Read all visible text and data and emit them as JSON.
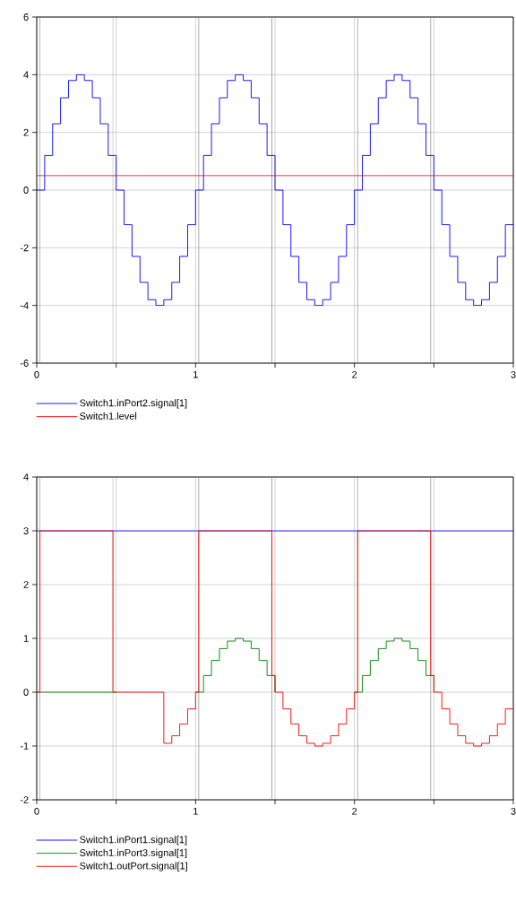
{
  "chart_data": [
    {
      "type": "step",
      "xlim": [
        0,
        3
      ],
      "ylim": [
        -6,
        6
      ],
      "xticks": [
        0,
        {
          "value": 0.5,
          "label": null
        },
        1,
        {
          "value": 1.5,
          "label": null
        },
        2,
        {
          "value": 2.5,
          "label": null
        },
        3
      ],
      "yticks": [
        -6,
        -4,
        -2,
        0,
        2,
        4,
        6
      ],
      "grid": true,
      "legend": "bottom",
      "x": [
        0,
        0.05,
        0.1,
        0.15,
        0.2,
        0.25,
        0.3,
        0.35,
        0.4,
        0.45,
        0.5,
        0.55,
        0.6,
        0.65,
        0.7,
        0.75,
        0.8,
        0.85,
        0.9,
        0.95,
        1,
        1.05,
        1.1,
        1.15,
        1.2,
        1.25,
        1.3,
        1.35,
        1.4,
        1.45,
        1.5,
        1.55,
        1.6,
        1.65,
        1.7,
        1.75,
        1.8,
        1.85,
        1.9,
        1.95,
        2,
        2.05,
        2.1,
        2.15,
        2.2,
        2.25,
        2.3,
        2.35,
        2.4,
        2.45,
        2.5,
        2.55,
        2.6,
        2.65,
        2.7,
        2.75,
        2.8,
        2.85,
        2.9,
        2.95,
        3
      ],
      "series": [
        {
          "name": "Switch1.inPort2.signal[1]",
          "color": "#0000ff",
          "values": [
            0,
            1.2,
            2.3,
            3.2,
            3.8,
            4,
            3.8,
            3.2,
            2.3,
            1.2,
            0,
            -1.2,
            -2.3,
            -3.2,
            -3.8,
            -4,
            -3.8,
            -3.2,
            -2.3,
            -1.2,
            0,
            1.2,
            2.3,
            3.2,
            3.8,
            4,
            3.8,
            3.2,
            2.3,
            1.2,
            0,
            -1.2,
            -2.3,
            -3.2,
            -3.8,
            -4,
            -3.8,
            -3.2,
            -2.3,
            -1.2,
            0,
            1.2,
            2.3,
            3.2,
            3.8,
            4,
            3.8,
            3.2,
            2.3,
            1.2,
            0,
            -1.2,
            -2.3,
            -3.2,
            -3.8,
            -4,
            -3.8,
            -3.2,
            -2.3,
            -1.2,
            -1.2
          ]
        },
        {
          "name": "Switch1.level",
          "color": "#ff0000",
          "type": "line",
          "x": [
            0,
            3
          ],
          "values": [
            0.5,
            0.5
          ]
        }
      ],
      "ref_lines": [
        {
          "axis": "x",
          "value": 0.02,
          "color": "#808080"
        },
        {
          "axis": "x",
          "value": 0.48,
          "color": "#808080"
        },
        {
          "axis": "x",
          "value": 1.02,
          "color": "#808080"
        },
        {
          "axis": "x",
          "value": 1.48,
          "color": "#808080"
        },
        {
          "axis": "x",
          "value": 2.02,
          "color": "#808080"
        },
        {
          "axis": "x",
          "value": 2.48,
          "color": "#808080"
        }
      ]
    },
    {
      "type": "step",
      "xlim": [
        0,
        3
      ],
      "ylim": [
        -2,
        4
      ],
      "xticks": [
        0,
        {
          "value": 0.5,
          "label": null
        },
        1,
        {
          "value": 1.5,
          "label": null
        },
        2,
        {
          "value": 2.5,
          "label": null
        },
        3
      ],
      "yticks": [
        -2,
        -1,
        0,
        1,
        2,
        3,
        4
      ],
      "grid": true,
      "legend": "bottom",
      "x": [
        0,
        0.05,
        0.1,
        0.15,
        0.2,
        0.25,
        0.3,
        0.35,
        0.4,
        0.45,
        0.5,
        0.55,
        0.6,
        0.65,
        0.7,
        0.75,
        0.8,
        0.85,
        0.9,
        0.95,
        1,
        1.05,
        1.1,
        1.15,
        1.2,
        1.25,
        1.3,
        1.35,
        1.4,
        1.45,
        1.5,
        1.55,
        1.6,
        1.65,
        1.7,
        1.75,
        1.8,
        1.85,
        1.9,
        1.95,
        2,
        2.05,
        2.1,
        2.15,
        2.2,
        2.25,
        2.3,
        2.35,
        2.4,
        2.45,
        2.5
      ],
      "series": [
        {
          "name": "Switch1.inPort1.signal[1]",
          "color": "#0000ff",
          "type": "line",
          "x": [
            0,
            3
          ],
          "values": [
            3,
            3
          ]
        },
        {
          "name": "Switch1.inPort3.signal[1]",
          "color": "#008000",
          "values": [
            0,
            0,
            0,
            0,
            0,
            0,
            0,
            0,
            0,
            0,
            0,
            null,
            null,
            null,
            null,
            null,
            null,
            null,
            null,
            null,
            0,
            0.31,
            0.59,
            0.81,
            0.95,
            1,
            0.95,
            0.81,
            0.59,
            0.31,
            0,
            null,
            null,
            null,
            null,
            null,
            null,
            null,
            null,
            null,
            0,
            0.31,
            0.59,
            0.81,
            0.95,
            1,
            0.95,
            0.81,
            0.59,
            0.31,
            0
          ]
        },
        {
          "name": "Switch1.outPort.signal[1]",
          "color": "#ff0000",
          "x": [
            0,
            0.02,
            0.48,
            0.8,
            0.85,
            0.9,
            0.95,
            1,
            1.02,
            1.48,
            1.5,
            1.55,
            1.6,
            1.65,
            1.7,
            1.75,
            1.8,
            1.85,
            1.9,
            1.95,
            2,
            2.02,
            2.48,
            2.5,
            2.55,
            2.6,
            2.65,
            2.7,
            2.75,
            2.8,
            2.85,
            2.9,
            2.95,
            3
          ],
          "values": [
            0,
            3,
            0,
            -0.95,
            -0.81,
            -0.59,
            -0.31,
            0,
            3,
            0.31,
            0,
            -0.31,
            -0.59,
            -0.81,
            -0.95,
            -1,
            -0.95,
            -0.81,
            -0.59,
            -0.31,
            0,
            3,
            0.31,
            0,
            -0.31,
            -0.59,
            -0.81,
            -0.95,
            -1,
            -0.95,
            -0.81,
            -0.59,
            -0.31,
            -0.31
          ]
        }
      ],
      "ref_lines": [
        {
          "axis": "x",
          "value": 0.02,
          "color": "#808080"
        },
        {
          "axis": "x",
          "value": 0.48,
          "color": "#808080"
        },
        {
          "axis": "x",
          "value": 1.02,
          "color": "#808080"
        },
        {
          "axis": "x",
          "value": 1.48,
          "color": "#808080"
        },
        {
          "axis": "x",
          "value": 2.02,
          "color": "#808080"
        },
        {
          "axis": "x",
          "value": 2.48,
          "color": "#808080"
        }
      ]
    }
  ]
}
